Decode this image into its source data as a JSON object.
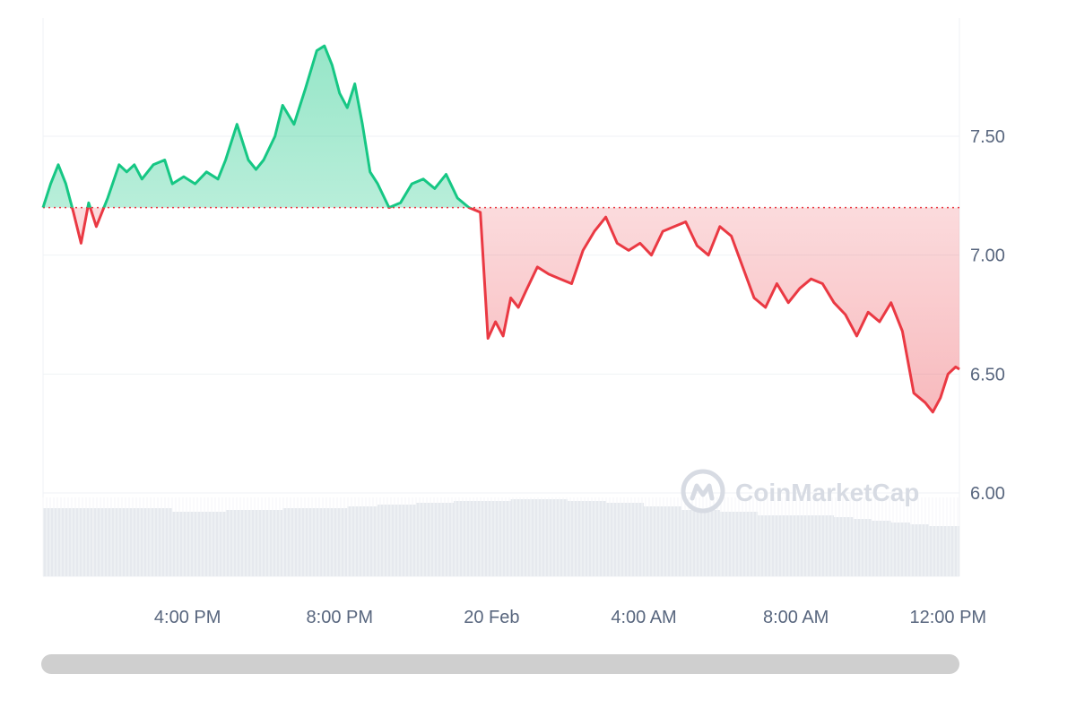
{
  "chart_data": {
    "type": "area",
    "baseline": 7.2,
    "ylim": [
      5.65,
      7.98
    ],
    "y_ticks": [
      "7.50",
      "7.00",
      "6.50",
      "6.00"
    ],
    "y_tick_values": [
      7.5,
      7.0,
      6.5,
      6.0
    ],
    "x_ticks": [
      "4:00 PM",
      "8:00 PM",
      "20 Feb",
      "4:00 AM",
      "8:00 AM",
      "12:00 PM"
    ],
    "x_tick_hours": [
      16,
      20,
      24,
      28,
      32,
      36
    ],
    "x_range_hours": [
      12.2,
      36.3
    ],
    "series": [
      {
        "x_hours": [
          12.2,
          12.4,
          12.6,
          12.8,
          13.0,
          13.2,
          13.4,
          13.6,
          13.9,
          14.2,
          14.4,
          14.6,
          14.8,
          15.1,
          15.4,
          15.6,
          15.9,
          16.2,
          16.5,
          16.8,
          17.0,
          17.3,
          17.6,
          17.8,
          18.0,
          18.3,
          18.5,
          18.8,
          19.1,
          19.4,
          19.6,
          19.8,
          20.0,
          20.2,
          20.4,
          20.6,
          20.8,
          21.0,
          21.3,
          21.6,
          21.9,
          22.2,
          22.5,
          22.8,
          23.1,
          23.4,
          23.7,
          23.9,
          24.1,
          24.3,
          24.5,
          24.7,
          24.9,
          25.2,
          25.5,
          25.8,
          26.1,
          26.4,
          26.7,
          27.0,
          27.3,
          27.6,
          27.9,
          28.2,
          28.5,
          28.8,
          29.1,
          29.4,
          29.7,
          30.0,
          30.3,
          30.6,
          30.9,
          31.2,
          31.5,
          31.8,
          32.1,
          32.4,
          32.7,
          33.0,
          33.3,
          33.6,
          33.9,
          34.2,
          34.5,
          34.8,
          35.1,
          35.4,
          35.6,
          35.8,
          36.0,
          36.2,
          36.3
        ],
        "values": [
          7.2,
          7.3,
          7.38,
          7.3,
          7.18,
          7.05,
          7.22,
          7.12,
          7.24,
          7.38,
          7.35,
          7.38,
          7.32,
          7.38,
          7.4,
          7.3,
          7.33,
          7.3,
          7.35,
          7.32,
          7.4,
          7.55,
          7.4,
          7.36,
          7.4,
          7.5,
          7.63,
          7.55,
          7.7,
          7.86,
          7.88,
          7.8,
          7.68,
          7.62,
          7.72,
          7.55,
          7.35,
          7.3,
          7.2,
          7.22,
          7.3,
          7.32,
          7.28,
          7.34,
          7.24,
          7.2,
          7.18,
          6.65,
          6.72,
          6.66,
          6.82,
          6.78,
          6.85,
          6.95,
          6.92,
          6.9,
          6.88,
          7.02,
          7.1,
          7.16,
          7.05,
          7.02,
          7.05,
          7.0,
          7.1,
          7.12,
          7.14,
          7.04,
          7.0,
          7.12,
          7.08,
          6.95,
          6.82,
          6.78,
          6.88,
          6.8,
          6.86,
          6.9,
          6.88,
          6.8,
          6.75,
          6.66,
          6.76,
          6.72,
          6.8,
          6.68,
          6.42,
          6.38,
          6.34,
          6.4,
          6.5,
          6.53,
          6.52
        ]
      }
    ],
    "volume": {
      "x_hours": [
        12.2,
        13.5,
        15.0,
        15.6,
        16.4,
        17.0,
        18.5,
        19.5,
        20.2,
        21.0,
        22.0,
        23.0,
        24.0,
        24.5,
        25.0,
        26.0,
        27.0,
        28.0,
        29.0,
        30.0,
        31.0,
        32.0,
        33.0,
        33.5,
        34.0,
        34.5,
        35.0,
        35.5,
        36.0,
        36.3
      ],
      "values": [
        0.38,
        0.38,
        0.38,
        0.36,
        0.36,
        0.37,
        0.38,
        0.38,
        0.39,
        0.4,
        0.41,
        0.42,
        0.42,
        0.43,
        0.43,
        0.42,
        0.41,
        0.39,
        0.37,
        0.36,
        0.34,
        0.34,
        0.33,
        0.32,
        0.31,
        0.3,
        0.29,
        0.28,
        0.28,
        0.28
      ]
    }
  },
  "watermark": {
    "text": "CoinMarketCap",
    "logo": "coinmarketcap-logo"
  },
  "colors": {
    "up": "#16c784",
    "down": "#ea3943",
    "grid": "#eff2f5",
    "baseline_dots": "#ea3943",
    "volume": "#e6e9ee",
    "scrollbar": "#cfcfcf",
    "label": "#58667e"
  }
}
